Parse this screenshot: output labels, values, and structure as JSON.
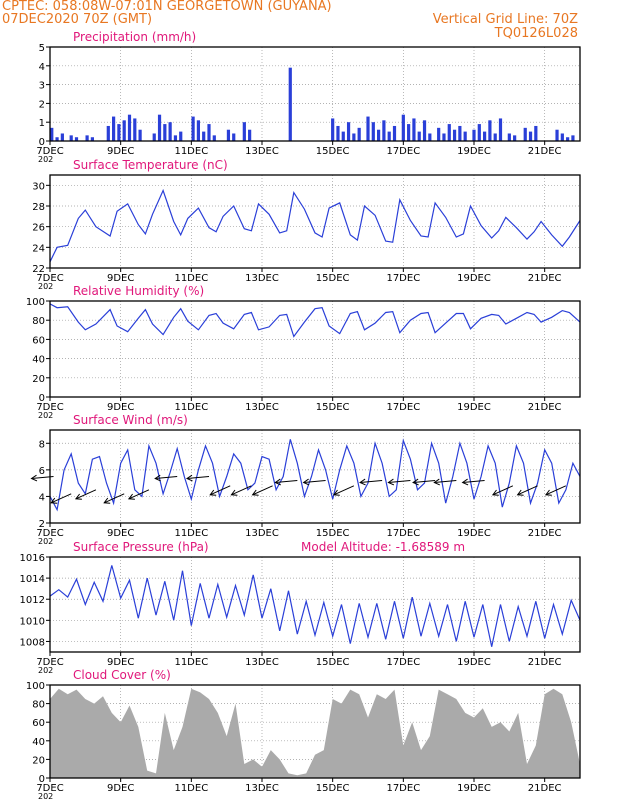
{
  "header": {
    "line1": "CPTEC:   058:08W-07:01N   GEORGETOWN (GUYANA)",
    "line2_left": "07DEC2020 70Z (GMT)",
    "line2_right": "Vertical Grid Line: 70Z",
    "line3_right": "TQ0126L028"
  },
  "colors": {
    "header_text": "#e87722",
    "panel_title": "#e0177a",
    "series_line": "#2a3fd8",
    "cloud_fill": "#aaaaaa",
    "wind_arrow": "#000000",
    "grid": "#9a9a9a"
  },
  "x_axis": {
    "tick_labels": [
      "7DEC",
      "9DEC",
      "11DEC",
      "13DEC",
      "15DEC",
      "17DEC",
      "19DEC",
      "21DEC"
    ],
    "year_fragment": "202"
  },
  "chart_data": [
    {
      "type": "bar",
      "title": "Precipitation (mm/h)",
      "ylim": [
        0,
        5
      ],
      "yticks": [
        0,
        1,
        2,
        3,
        4,
        5
      ],
      "grid": true,
      "x_range_days": [
        7,
        22
      ],
      "bars": [
        {
          "x": 7.05,
          "y": 0.7
        },
        {
          "x": 7.2,
          "y": 0.2
        },
        {
          "x": 7.35,
          "y": 0.4
        },
        {
          "x": 7.6,
          "y": 0.3
        },
        {
          "x": 7.75,
          "y": 0.2
        },
        {
          "x": 8.05,
          "y": 0.3
        },
        {
          "x": 8.2,
          "y": 0.2
        },
        {
          "x": 8.65,
          "y": 0.8
        },
        {
          "x": 8.8,
          "y": 1.3
        },
        {
          "x": 8.95,
          "y": 0.9
        },
        {
          "x": 9.1,
          "y": 1.1
        },
        {
          "x": 9.25,
          "y": 1.4
        },
        {
          "x": 9.4,
          "y": 1.2
        },
        {
          "x": 9.55,
          "y": 0.6
        },
        {
          "x": 9.95,
          "y": 0.4
        },
        {
          "x": 10.1,
          "y": 1.4
        },
        {
          "x": 10.25,
          "y": 0.9
        },
        {
          "x": 10.4,
          "y": 1.0
        },
        {
          "x": 10.55,
          "y": 0.3
        },
        {
          "x": 10.7,
          "y": 0.5
        },
        {
          "x": 11.05,
          "y": 1.3
        },
        {
          "x": 11.2,
          "y": 1.1
        },
        {
          "x": 11.35,
          "y": 0.5
        },
        {
          "x": 11.5,
          "y": 0.9
        },
        {
          "x": 11.65,
          "y": 0.3
        },
        {
          "x": 12.05,
          "y": 0.6
        },
        {
          "x": 12.2,
          "y": 0.4
        },
        {
          "x": 12.5,
          "y": 1.0
        },
        {
          "x": 12.65,
          "y": 0.6
        },
        {
          "x": 13.8,
          "y": 3.9
        },
        {
          "x": 15.0,
          "y": 1.2
        },
        {
          "x": 15.15,
          "y": 0.8
        },
        {
          "x": 15.3,
          "y": 0.5
        },
        {
          "x": 15.45,
          "y": 1.0
        },
        {
          "x": 15.6,
          "y": 0.4
        },
        {
          "x": 15.75,
          "y": 0.7
        },
        {
          "x": 16.0,
          "y": 1.3
        },
        {
          "x": 16.15,
          "y": 1.0
        },
        {
          "x": 16.3,
          "y": 0.6
        },
        {
          "x": 16.45,
          "y": 1.1
        },
        {
          "x": 16.6,
          "y": 0.5
        },
        {
          "x": 16.75,
          "y": 0.8
        },
        {
          "x": 17.0,
          "y": 1.4
        },
        {
          "x": 17.15,
          "y": 0.9
        },
        {
          "x": 17.3,
          "y": 1.2
        },
        {
          "x": 17.45,
          "y": 0.5
        },
        {
          "x": 17.6,
          "y": 1.1
        },
        {
          "x": 17.75,
          "y": 0.4
        },
        {
          "x": 18.0,
          "y": 0.7
        },
        {
          "x": 18.15,
          "y": 0.4
        },
        {
          "x": 18.3,
          "y": 0.9
        },
        {
          "x": 18.45,
          "y": 0.6
        },
        {
          "x": 18.6,
          "y": 0.8
        },
        {
          "x": 18.75,
          "y": 0.5
        },
        {
          "x": 19.0,
          "y": 0.6
        },
        {
          "x": 19.15,
          "y": 0.9
        },
        {
          "x": 19.3,
          "y": 0.5
        },
        {
          "x": 19.45,
          "y": 1.1
        },
        {
          "x": 19.6,
          "y": 0.4
        },
        {
          "x": 19.75,
          "y": 1.2
        },
        {
          "x": 20.0,
          "y": 0.4
        },
        {
          "x": 20.15,
          "y": 0.3
        },
        {
          "x": 20.45,
          "y": 0.7
        },
        {
          "x": 20.6,
          "y": 0.5
        },
        {
          "x": 20.75,
          "y": 0.8
        },
        {
          "x": 21.35,
          "y": 0.6
        },
        {
          "x": 21.5,
          "y": 0.4
        },
        {
          "x": 21.65,
          "y": 0.2
        },
        {
          "x": 21.8,
          "y": 0.3
        }
      ]
    },
    {
      "type": "line",
      "title": "Surface Temperature (nC)",
      "ylim": [
        22,
        31
      ],
      "yticks": [
        22,
        24,
        26,
        28,
        30
      ],
      "grid": true,
      "x": [
        7.0,
        7.2,
        7.5,
        7.8,
        8.0,
        8.3,
        8.7,
        8.9,
        9.2,
        9.5,
        9.7,
        9.9,
        10.2,
        10.5,
        10.7,
        10.9,
        11.2,
        11.5,
        11.7,
        11.9,
        12.2,
        12.5,
        12.7,
        12.9,
        13.2,
        13.5,
        13.7,
        13.9,
        14.2,
        14.5,
        14.7,
        14.9,
        15.2,
        15.5,
        15.7,
        15.9,
        16.2,
        16.5,
        16.7,
        16.9,
        17.2,
        17.5,
        17.7,
        17.9,
        18.2,
        18.5,
        18.7,
        18.9,
        19.2,
        19.5,
        19.7,
        19.9,
        20.2,
        20.5,
        20.7,
        20.9,
        21.2,
        21.5,
        21.7,
        22.0
      ],
      "y": [
        22.6,
        24.0,
        24.2,
        26.8,
        27.6,
        26.0,
        25.1,
        27.5,
        28.2,
        26.2,
        25.3,
        27.2,
        29.5,
        26.5,
        25.2,
        26.8,
        27.8,
        25.9,
        25.5,
        27.0,
        28.0,
        25.8,
        25.6,
        28.2,
        27.2,
        25.4,
        25.6,
        29.3,
        27.7,
        25.4,
        25.0,
        27.8,
        28.3,
        25.2,
        24.7,
        28.0,
        27.1,
        24.6,
        24.5,
        28.6,
        26.6,
        25.1,
        25.0,
        28.3,
        26.9,
        25.0,
        25.3,
        28.0,
        26.1,
        24.9,
        25.6,
        26.9,
        25.9,
        24.8,
        25.5,
        26.5,
        25.2,
        24.1,
        25.0,
        26.6
      ]
    },
    {
      "type": "line",
      "title": "Relative Humidity (%)",
      "ylim": [
        0,
        100
      ],
      "yticks": [
        0,
        20,
        40,
        60,
        80,
        100
      ],
      "grid": true,
      "x": [
        7.0,
        7.2,
        7.5,
        7.8,
        8.0,
        8.3,
        8.7,
        8.9,
        9.2,
        9.5,
        9.7,
        9.9,
        10.2,
        10.5,
        10.7,
        10.9,
        11.2,
        11.5,
        11.7,
        11.9,
        12.2,
        12.5,
        12.7,
        12.9,
        13.2,
        13.5,
        13.7,
        13.9,
        14.2,
        14.5,
        14.7,
        14.9,
        15.2,
        15.5,
        15.7,
        15.9,
        16.2,
        16.5,
        16.7,
        16.9,
        17.2,
        17.5,
        17.7,
        17.9,
        18.2,
        18.5,
        18.7,
        18.9,
        19.2,
        19.5,
        19.7,
        19.9,
        20.2,
        20.5,
        20.7,
        20.9,
        21.2,
        21.5,
        21.7,
        22.0
      ],
      "y": [
        97,
        93,
        94,
        78,
        70,
        76,
        91,
        74,
        68,
        82,
        91,
        76,
        65,
        83,
        92,
        79,
        70,
        85,
        87,
        77,
        71,
        86,
        88,
        70,
        73,
        85,
        86,
        63,
        78,
        92,
        93,
        74,
        66,
        87,
        89,
        70,
        77,
        88,
        89,
        67,
        80,
        87,
        88,
        67,
        77,
        87,
        87,
        71,
        82,
        86,
        85,
        76,
        82,
        88,
        86,
        78,
        83,
        90,
        88,
        78
      ]
    },
    {
      "type": "line",
      "title": "Surface Wind (m/s)",
      "ylim": [
        2,
        9
      ],
      "yticks": [
        2,
        4,
        6,
        8
      ],
      "grid": true,
      "x": [
        7.0,
        7.2,
        7.4,
        7.6,
        7.8,
        8.0,
        8.2,
        8.4,
        8.6,
        8.8,
        9.0,
        9.2,
        9.4,
        9.6,
        9.8,
        10.0,
        10.2,
        10.4,
        10.6,
        10.8,
        11.0,
        11.2,
        11.4,
        11.6,
        11.8,
        12.0,
        12.2,
        12.4,
        12.6,
        12.8,
        13.0,
        13.2,
        13.4,
        13.6,
        13.8,
        14.0,
        14.2,
        14.4,
        14.6,
        14.8,
        15.0,
        15.2,
        15.4,
        15.6,
        15.8,
        16.0,
        16.2,
        16.4,
        16.6,
        16.8,
        17.0,
        17.2,
        17.4,
        17.6,
        17.8,
        18.0,
        18.2,
        18.4,
        18.6,
        18.8,
        19.0,
        19.2,
        19.4,
        19.6,
        19.8,
        20.0,
        20.2,
        20.4,
        20.6,
        20.8,
        21.0,
        21.2,
        21.4,
        21.6,
        21.8,
        22.0
      ],
      "y": [
        4.0,
        3.0,
        6.0,
        7.2,
        5.0,
        4.2,
        6.8,
        7.0,
        5.0,
        3.5,
        6.5,
        7.5,
        4.5,
        4.0,
        7.8,
        6.5,
        4.2,
        5.8,
        7.6,
        5.5,
        3.8,
        6.0,
        7.8,
        6.5,
        4.0,
        5.5,
        7.2,
        6.5,
        4.5,
        5.0,
        7.0,
        6.8,
        4.5,
        5.5,
        8.3,
        6.5,
        4.0,
        5.5,
        7.5,
        6.0,
        3.8,
        6.0,
        7.8,
        6.5,
        4.0,
        5.0,
        8.0,
        6.5,
        4.0,
        4.5,
        8.2,
        6.8,
        4.5,
        5.0,
        8.0,
        6.5,
        3.5,
        5.5,
        8.0,
        6.5,
        3.8,
        5.5,
        7.8,
        6.5,
        3.2,
        5.0,
        7.8,
        6.5,
        3.5,
        5.0,
        7.5,
        6.5,
        3.5,
        4.5,
        6.5,
        5.5
      ],
      "wind_vectors": [
        {
          "x": 7.1,
          "dir": "W",
          "y": 5.5
        },
        {
          "x": 7.6,
          "dir": "SW",
          "y": 4.2
        },
        {
          "x": 8.3,
          "dir": "SW",
          "y": 4.5
        },
        {
          "x": 9.1,
          "dir": "SW",
          "y": 4.2
        },
        {
          "x": 9.8,
          "dir": "SW",
          "y": 4.5
        },
        {
          "x": 10.6,
          "dir": "W",
          "y": 5.5
        },
        {
          "x": 11.5,
          "dir": "W",
          "y": 5.5
        },
        {
          "x": 12.1,
          "dir": "SW",
          "y": 4.8
        },
        {
          "x": 12.7,
          "dir": "SW",
          "y": 4.8
        },
        {
          "x": 13.3,
          "dir": "SW",
          "y": 4.8
        },
        {
          "x": 14.0,
          "dir": "W",
          "y": 5.2
        },
        {
          "x": 14.8,
          "dir": "W",
          "y": 5.2
        },
        {
          "x": 15.6,
          "dir": "SW",
          "y": 4.8
        },
        {
          "x": 16.4,
          "dir": "W",
          "y": 5.2
        },
        {
          "x": 17.2,
          "dir": "W",
          "y": 5.2
        },
        {
          "x": 17.9,
          "dir": "W",
          "y": 5.2
        },
        {
          "x": 18.5,
          "dir": "W",
          "y": 5.2
        },
        {
          "x": 19.3,
          "dir": "W",
          "y": 5.2
        },
        {
          "x": 20.1,
          "dir": "SW",
          "y": 4.8
        },
        {
          "x": 20.8,
          "dir": "SW",
          "y": 4.8
        },
        {
          "x": 21.6,
          "dir": "SW",
          "y": 4.8
        }
      ]
    },
    {
      "type": "line",
      "title": "Surface Pressure (hPa)",
      "annotation": "Model Altitude: -1.68589 m",
      "ylim": [
        1007,
        1016
      ],
      "yticks": [
        1008,
        1010,
        1012,
        1014,
        1016
      ],
      "grid": true,
      "x": [
        7.0,
        7.25,
        7.5,
        7.75,
        8.0,
        8.25,
        8.5,
        8.75,
        9.0,
        9.25,
        9.5,
        9.75,
        10.0,
        10.25,
        10.5,
        10.75,
        11.0,
        11.25,
        11.5,
        11.75,
        12.0,
        12.25,
        12.5,
        12.75,
        13.0,
        13.25,
        13.5,
        13.75,
        14.0,
        14.25,
        14.5,
        14.75,
        15.0,
        15.25,
        15.5,
        15.75,
        16.0,
        16.25,
        16.5,
        16.75,
        17.0,
        17.25,
        17.5,
        17.75,
        18.0,
        18.25,
        18.5,
        18.75,
        19.0,
        19.25,
        19.5,
        19.75,
        20.0,
        20.25,
        20.5,
        20.75,
        21.0,
        21.25,
        21.5,
        21.75,
        22.0
      ],
      "y": [
        1012.3,
        1012.9,
        1012.2,
        1013.9,
        1011.5,
        1013.6,
        1011.8,
        1015.2,
        1012.1,
        1013.8,
        1010.2,
        1014.0,
        1010.5,
        1013.7,
        1010.0,
        1014.7,
        1009.5,
        1013.5,
        1010.2,
        1013.4,
        1010.3,
        1013.3,
        1010.5,
        1014.3,
        1010.2,
        1013.0,
        1009.0,
        1012.8,
        1008.7,
        1011.8,
        1008.6,
        1011.7,
        1008.5,
        1011.5,
        1007.8,
        1011.6,
        1008.4,
        1011.6,
        1008.2,
        1011.8,
        1008.3,
        1012.2,
        1008.5,
        1011.6,
        1008.5,
        1011.5,
        1008.0,
        1011.8,
        1008.4,
        1011.5,
        1007.5,
        1011.5,
        1008.0,
        1011.3,
        1008.5,
        1011.8,
        1008.3,
        1011.5,
        1008.7,
        1011.9,
        1010.0
      ]
    },
    {
      "type": "area",
      "title": "Cloud Cover (%)",
      "ylim": [
        0,
        100
      ],
      "yticks": [
        0,
        20,
        40,
        60,
        80,
        100
      ],
      "grid": true,
      "x": [
        7.0,
        7.25,
        7.5,
        7.75,
        8.0,
        8.25,
        8.5,
        8.75,
        9.0,
        9.25,
        9.5,
        9.75,
        10.0,
        10.25,
        10.5,
        10.75,
        11.0,
        11.25,
        11.5,
        11.75,
        12.0,
        12.25,
        12.5,
        12.75,
        13.0,
        13.25,
        13.5,
        13.75,
        14.0,
        14.25,
        14.5,
        14.75,
        15.0,
        15.25,
        15.5,
        15.75,
        16.0,
        16.25,
        16.5,
        16.75,
        17.0,
        17.25,
        17.5,
        17.75,
        18.0,
        18.25,
        18.5,
        18.75,
        19.0,
        19.25,
        19.5,
        19.75,
        20.0,
        20.25,
        20.5,
        20.75,
        21.0,
        21.25,
        21.5,
        21.75,
        22.0
      ],
      "y": [
        85,
        96,
        90,
        95,
        85,
        80,
        88,
        70,
        60,
        78,
        55,
        8,
        5,
        70,
        30,
        55,
        96,
        92,
        85,
        70,
        45,
        80,
        15,
        20,
        12,
        30,
        20,
        5,
        3,
        5,
        25,
        30,
        85,
        80,
        95,
        90,
        65,
        90,
        85,
        95,
        35,
        60,
        30,
        45,
        95,
        90,
        85,
        70,
        65,
        75,
        55,
        60,
        50,
        70,
        15,
        35,
        90,
        96,
        90,
        60,
        15
      ]
    }
  ]
}
